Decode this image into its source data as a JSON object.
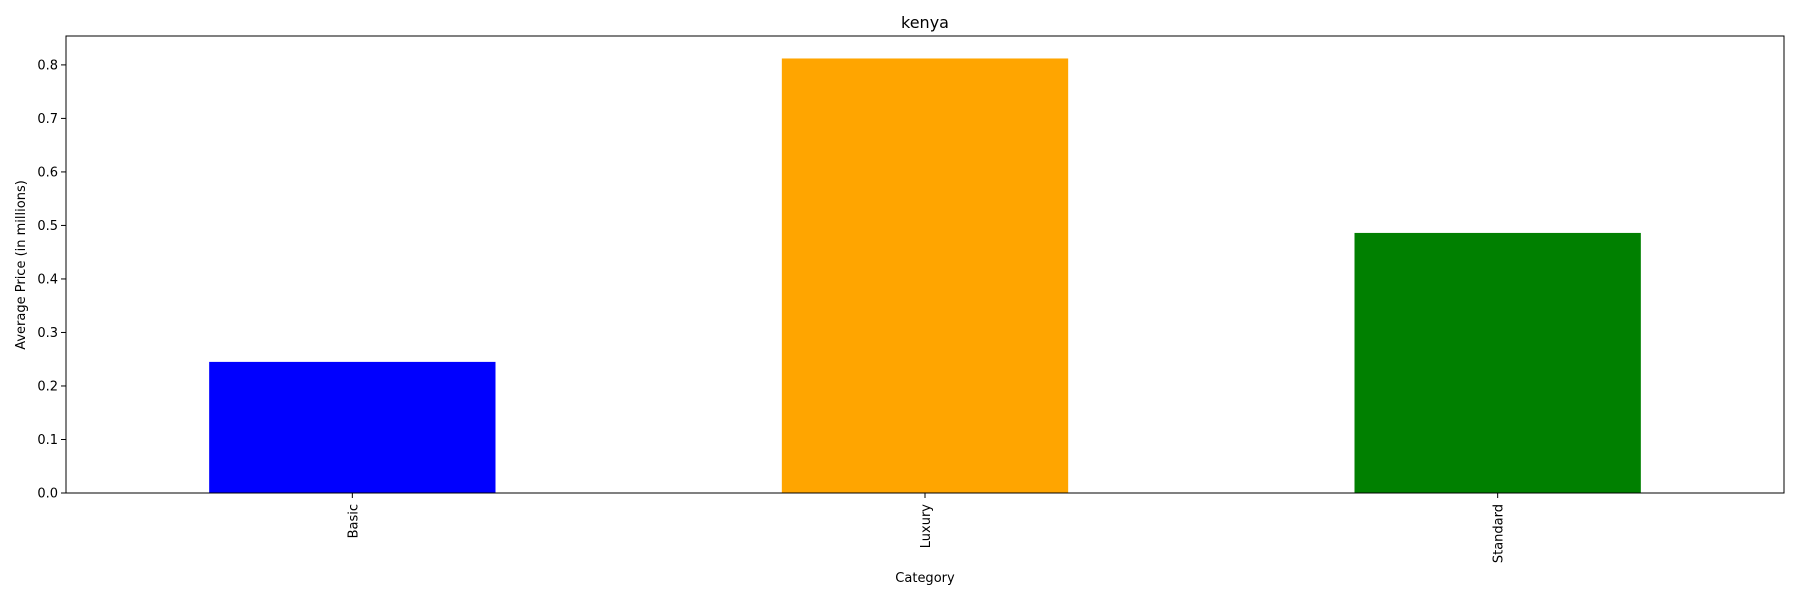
{
  "chart_data": {
    "type": "bar",
    "title": "kenya",
    "xlabel": "Category",
    "ylabel": "Average Price (in millions)",
    "categories": [
      "Basic",
      "Luxury",
      "Standard"
    ],
    "values": [
      0.245,
      0.812,
      0.486
    ],
    "colors": [
      "#0000ff",
      "#ffa500",
      "#008000"
    ],
    "ylim": [
      0,
      0.854
    ],
    "yticks": [
      0.0,
      0.1,
      0.2,
      0.3,
      0.4,
      0.5,
      0.6,
      0.7,
      0.8
    ],
    "ytick_labels": [
      "0.0",
      "0.1",
      "0.2",
      "0.3",
      "0.4",
      "0.5",
      "0.6",
      "0.7",
      "0.8"
    ],
    "xtick_rotation": "vertical",
    "grid": false,
    "legend": "none"
  }
}
